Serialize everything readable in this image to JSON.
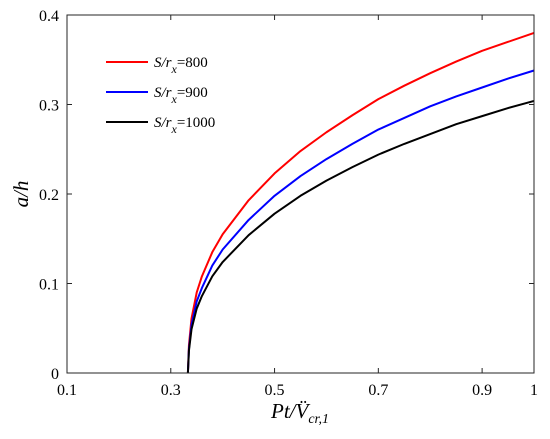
{
  "chart_data": {
    "type": "line",
    "xlabel": "Pt/V̈cr,1",
    "ylabel": "a/h",
    "xlim": [
      0.1,
      1.0
    ],
    "ylim": [
      0,
      0.4
    ],
    "xticks": [
      0.1,
      0.3,
      0.5,
      0.7,
      0.9,
      1
    ],
    "xtick_labels": [
      "0.1",
      "0.3",
      "0.5",
      "0.7",
      "0.9",
      "1"
    ],
    "yticks": [
      0,
      0.1,
      0.2,
      0.3,
      0.4
    ],
    "ytick_labels": [
      "0",
      "0.1",
      "0.2",
      "0.3",
      "0.4"
    ],
    "grid": false,
    "legend_position": "top-left",
    "series": [
      {
        "name": "S/rx=800",
        "legend_parts": {
          "pre": "S/r",
          "sub": "x",
          "post": "=800"
        },
        "color": "#ff0000",
        "x": [
          0.333,
          0.335,
          0.34,
          0.35,
          0.36,
          0.38,
          0.4,
          0.45,
          0.5,
          0.55,
          0.6,
          0.65,
          0.7,
          0.75,
          0.8,
          0.85,
          0.9,
          0.95,
          1.0
        ],
        "y": [
          0.0,
          0.031,
          0.061,
          0.09,
          0.108,
          0.135,
          0.155,
          0.193,
          0.223,
          0.248,
          0.269,
          0.288,
          0.306,
          0.321,
          0.335,
          0.348,
          0.36,
          0.37,
          0.38
        ]
      },
      {
        "name": "S/rx=900",
        "legend_parts": {
          "pre": "S/r",
          "sub": "x",
          "post": "=900"
        },
        "color": "#0000ff",
        "x": [
          0.333,
          0.335,
          0.34,
          0.35,
          0.36,
          0.38,
          0.4,
          0.45,
          0.5,
          0.55,
          0.6,
          0.65,
          0.7,
          0.75,
          0.8,
          0.85,
          0.9,
          0.95,
          1.0
        ],
        "y": [
          0.0,
          0.027,
          0.054,
          0.08,
          0.095,
          0.12,
          0.138,
          0.171,
          0.198,
          0.22,
          0.239,
          0.256,
          0.272,
          0.285,
          0.298,
          0.309,
          0.319,
          0.329,
          0.338
        ]
      },
      {
        "name": "S/rx=1000",
        "legend_parts": {
          "pre": "S/r",
          "sub": "x",
          "post": "=1000"
        },
        "color": "#000000",
        "x": [
          0.333,
          0.335,
          0.34,
          0.35,
          0.36,
          0.38,
          0.4,
          0.45,
          0.5,
          0.55,
          0.6,
          0.65,
          0.7,
          0.75,
          0.8,
          0.85,
          0.9,
          0.95,
          1.0
        ],
        "y": [
          0.0,
          0.025,
          0.049,
          0.072,
          0.086,
          0.108,
          0.124,
          0.154,
          0.178,
          0.198,
          0.215,
          0.23,
          0.244,
          0.256,
          0.267,
          0.278,
          0.287,
          0.296,
          0.304
        ]
      }
    ]
  }
}
